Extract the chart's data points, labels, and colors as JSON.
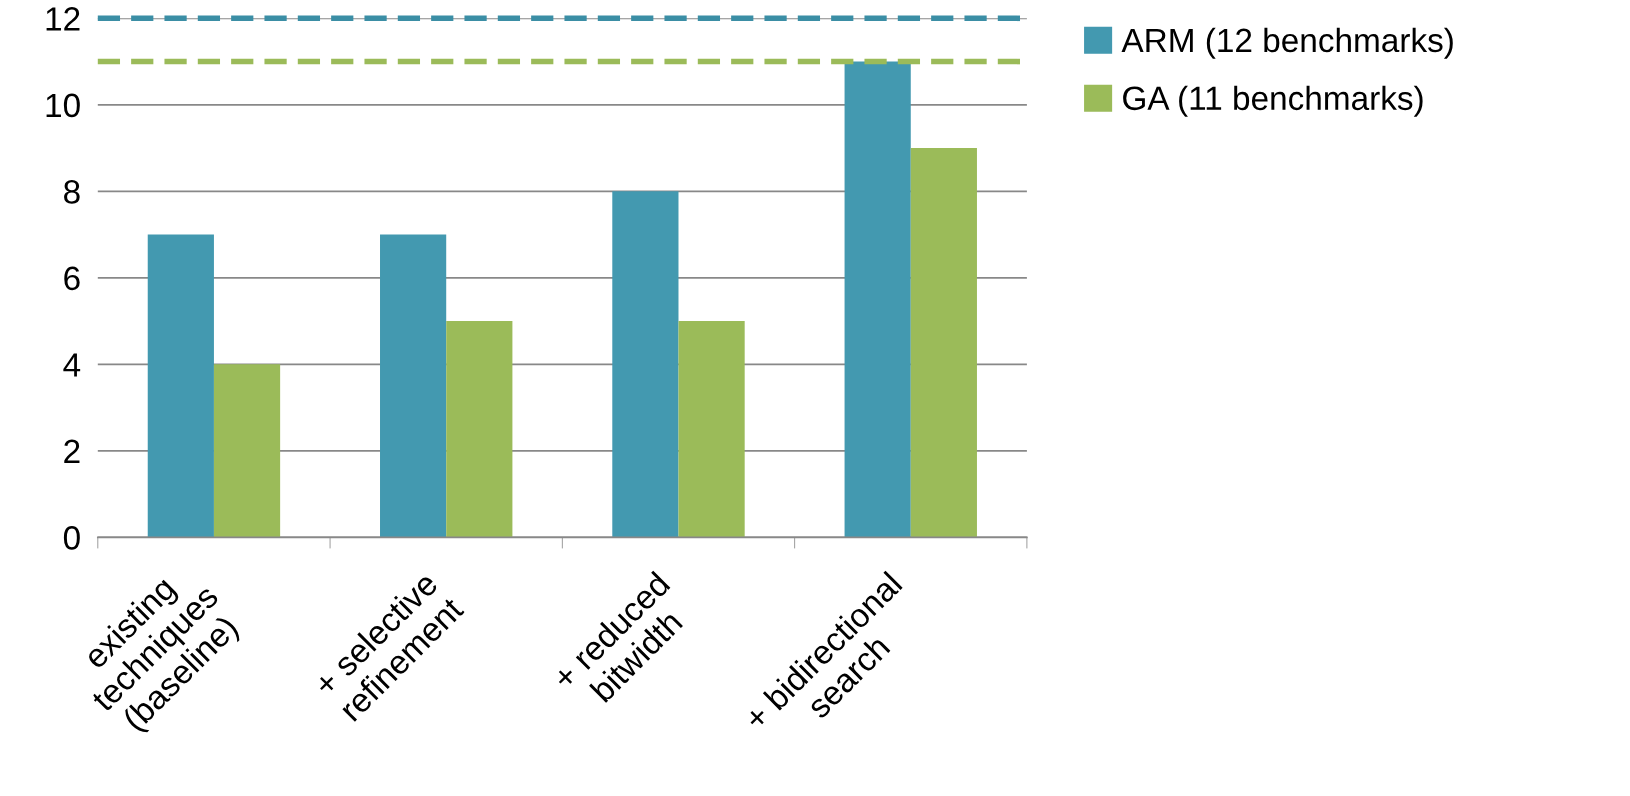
{
  "chart_data": {
    "type": "bar",
    "categories": [
      "existing\ntechniques\n(baseline)",
      "+ selective\nrefinement",
      "+ reduced\nbitwidth",
      "+ bidirectional\nsearch"
    ],
    "series": [
      {
        "name": "ARM (12 benchmarks)",
        "color": "#4399b0",
        "values": [
          7,
          7,
          8,
          11
        ]
      },
      {
        "name": "GA (11 benchmarks)",
        "color": "#9bbb59",
        "values": [
          4,
          5,
          5,
          9
        ]
      }
    ],
    "ylim": [
      0,
      12
    ],
    "yticks": [
      0,
      2,
      4,
      6,
      8,
      10,
      12
    ],
    "grid": "y",
    "legend": "top right",
    "ref_lines": [
      {
        "axis": "y",
        "value": 12,
        "color": "#3b8ea5",
        "line_style": "dashed"
      },
      {
        "axis": "y",
        "value": 11,
        "color": "#9bbb59",
        "line_style": "dashed"
      }
    ]
  }
}
